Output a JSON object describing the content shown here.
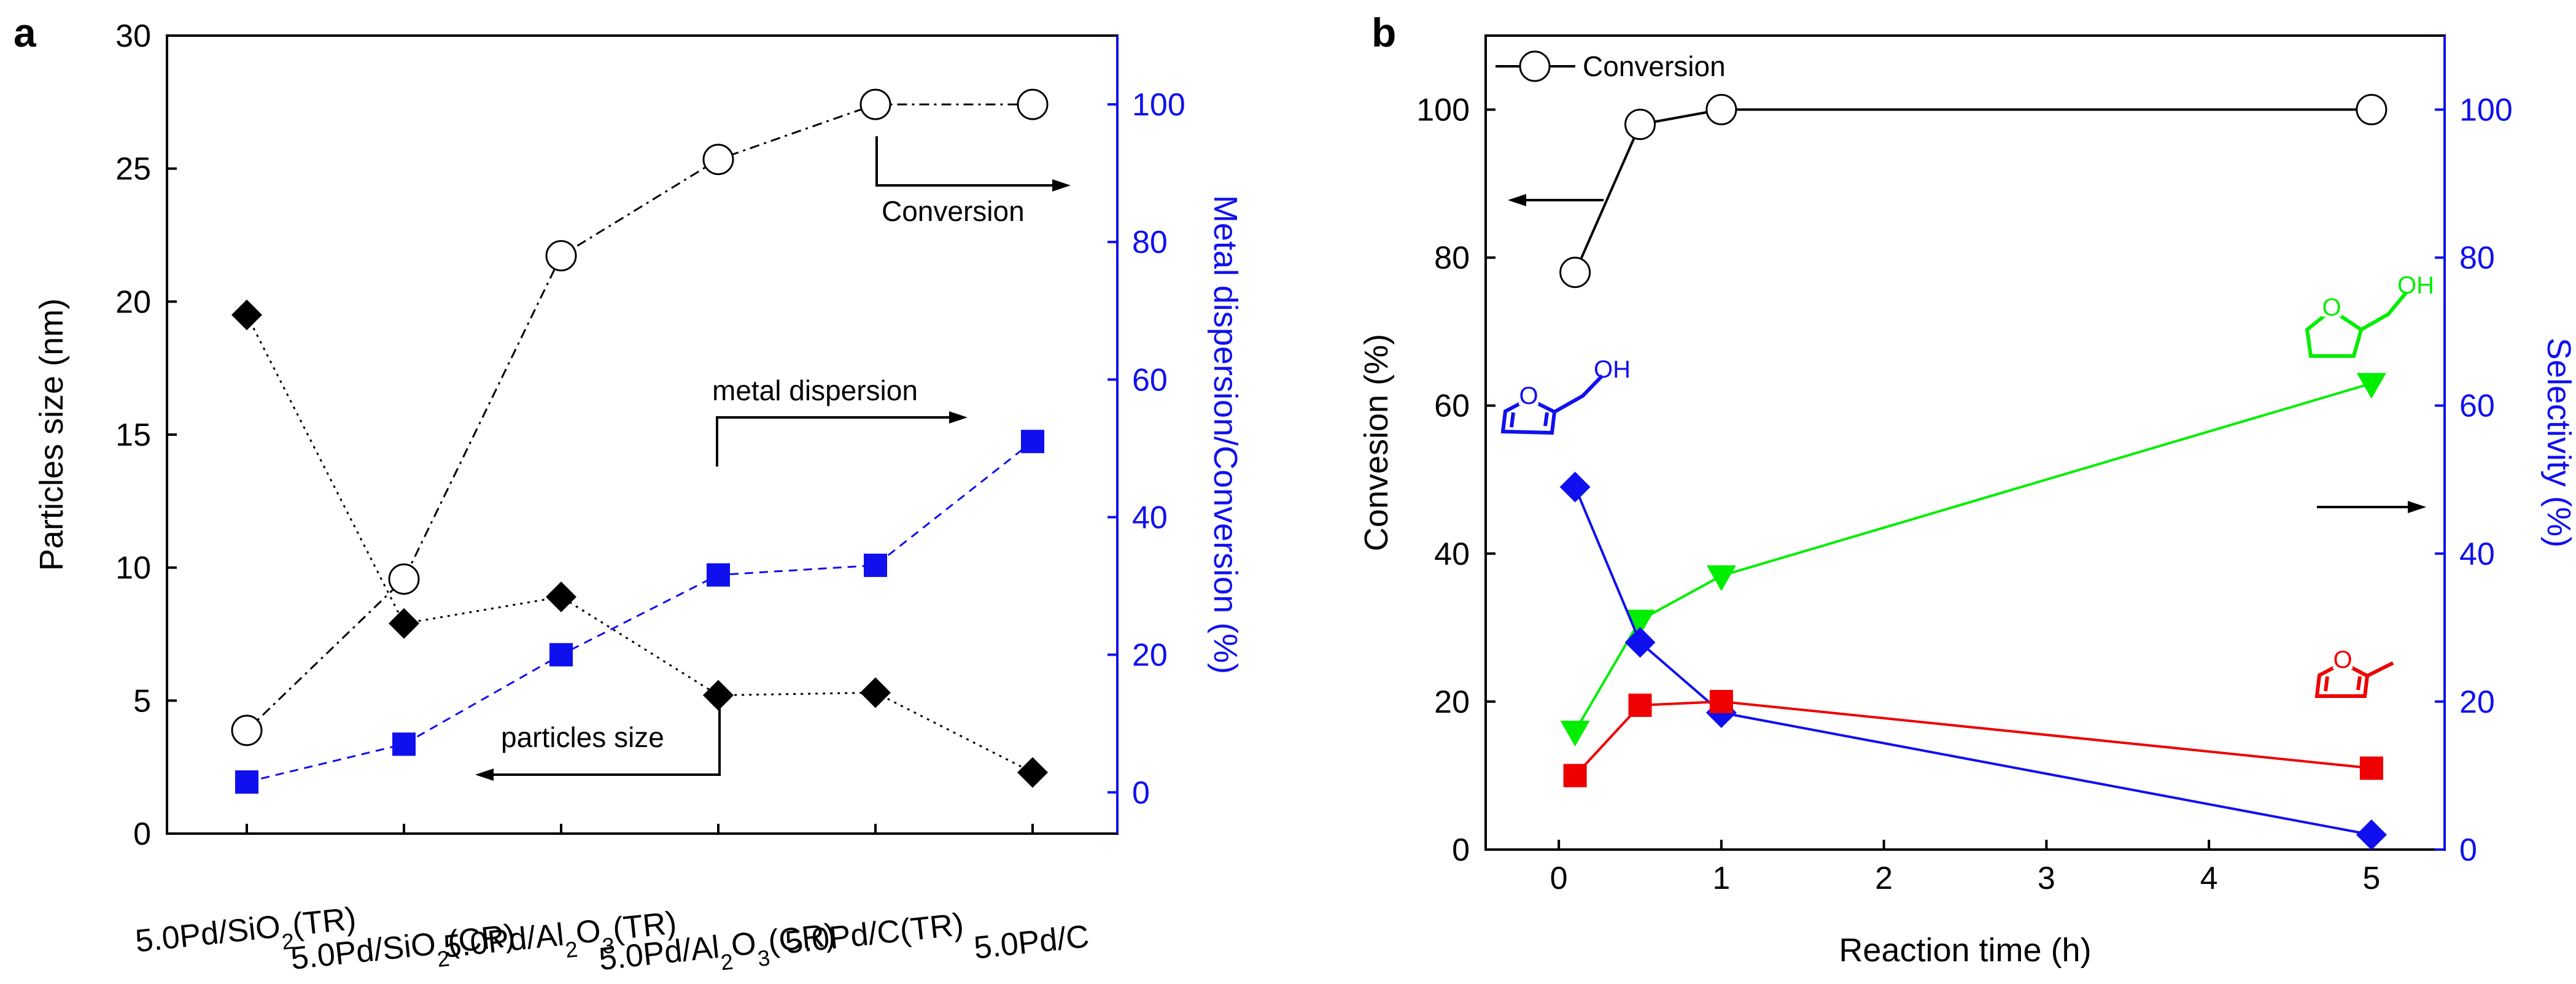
{
  "figure": {
    "panel_a": "a",
    "panel_b": "b"
  },
  "chart_data": [
    {
      "type": "line",
      "panel": "a",
      "categories": [
        "5.0Pd/SiO2(TR)",
        "5.0Pd/SiO2(CR)",
        "5.0Pd/Al2O3(TR)",
        "5.0Pd/Al2O3(CR)",
        "5.0Pd/C(TR)",
        "5.0Pd/C"
      ],
      "category_parts": [
        [
          "5.0Pd/SiO",
          "2",
          "(TR)"
        ],
        [
          "5.0Pd/SiO",
          "2",
          "(CR)"
        ],
        [
          "5.0Pd/Al",
          "2",
          "O",
          "3",
          "(TR)"
        ],
        [
          "5.0Pd/Al",
          "2",
          "O",
          "3",
          "(CR)"
        ],
        [
          "5.0Pd/C(TR)"
        ],
        [
          "5.0Pd/C"
        ]
      ],
      "ylabel_left": "Particles size (nm)",
      "ylabel_right": "Metal dispersion/Conversion (%)",
      "ylim_left": [
        0,
        30
      ],
      "ylim_right": [
        -6,
        110
      ],
      "yticks_left": [
        0,
        5,
        10,
        15,
        20,
        25,
        30
      ],
      "yticks_right": [
        0,
        20,
        40,
        60,
        80,
        100
      ],
      "series": [
        {
          "name": "particles size",
          "axis": "left",
          "marker": "diamond",
          "color": "#000000",
          "values": [
            19.5,
            7.9,
            8.9,
            5.2,
            5.3,
            2.3
          ]
        },
        {
          "name": "metal dispersion",
          "axis": "right",
          "marker": "square",
          "color": "#1010ee",
          "values": [
            1.5,
            7.0,
            20.0,
            31.6,
            33.0,
            51.0
          ]
        },
        {
          "name": "Conversion",
          "axis": "right",
          "marker": "circle-open",
          "color": "#000000",
          "values": [
            9.0,
            31.0,
            78.0,
            92.0,
            100.0,
            100.0
          ]
        }
      ],
      "annotations": [
        "Conversion",
        "metal dispersion",
        "particles size"
      ]
    },
    {
      "type": "line",
      "panel": "b",
      "xlabel": "Reaction time (h)",
      "ylabel_left": "Convesion (%)",
      "ylabel_right": "Selectivity (%)",
      "xlim": [
        -0.45,
        5.45
      ],
      "xticks": [
        0,
        1,
        2,
        3,
        4,
        5
      ],
      "ylim_left": [
        0,
        110
      ],
      "ylim_right": [
        0,
        110
      ],
      "yticks_left": [
        0,
        20,
        40,
        60,
        80,
        100
      ],
      "yticks_right": [
        0,
        20,
        40,
        60,
        80,
        100
      ],
      "legend": {
        "position": "top-left",
        "label": "Conversion"
      },
      "series": [
        {
          "name": "Conversion",
          "axis": "left",
          "marker": "circle-open",
          "color": "#000000",
          "x": [
            0.1,
            0.5,
            1,
            5
          ],
          "values": [
            78,
            98,
            100,
            100
          ]
        },
        {
          "name": "Tetrahydrofurfuryl alcohol",
          "axis": "right",
          "marker": "triangle-down",
          "color": "#00ee00",
          "x": [
            0.1,
            0.5,
            1,
            5
          ],
          "values": [
            16,
            31,
            37,
            63
          ]
        },
        {
          "name": "Furfuryl alcohol",
          "axis": "right",
          "marker": "diamond",
          "color": "#1010ee",
          "x": [
            0.1,
            0.5,
            1,
            5
          ],
          "values": [
            49,
            28,
            18.5,
            2
          ]
        },
        {
          "name": "2-Methylfuran",
          "axis": "right",
          "marker": "square",
          "color": "#ee0000",
          "x": [
            0.1,
            0.5,
            1,
            5
          ],
          "values": [
            10,
            19.5,
            20,
            11
          ]
        }
      ],
      "molecule_labels": {
        "oh": "OH",
        "o": "O"
      }
    }
  ]
}
